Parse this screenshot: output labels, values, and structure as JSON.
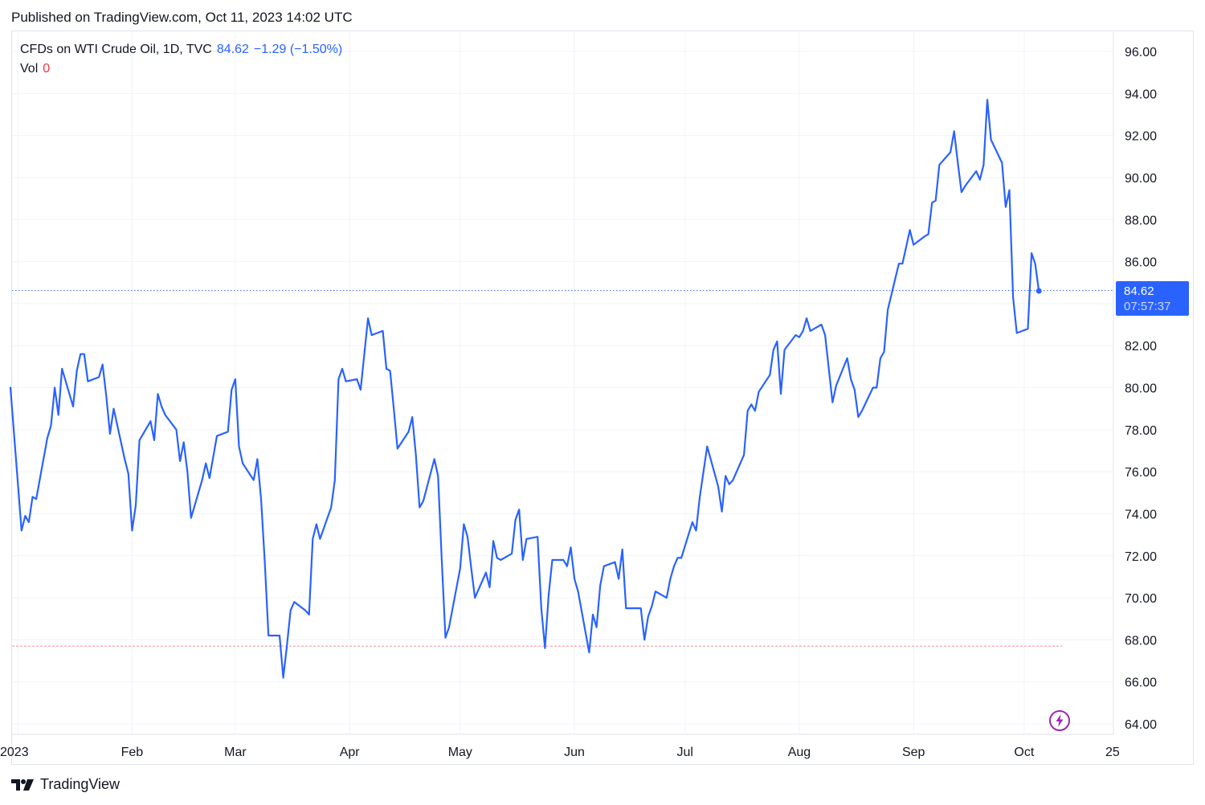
{
  "header": {
    "published": "Published on TradingView.com, Oct 11, 2023 14:02 UTC"
  },
  "legend": {
    "symbol": "CFDs on WTI Crude Oil, 1D, TVC",
    "last": "84.62",
    "change": "−1.29 (−1.50%)",
    "vol_label": "Vol",
    "vol_value": "0"
  },
  "price_badge": {
    "price": "84.62",
    "countdown": "07:57:37"
  },
  "footer": {
    "brand": "TradingView"
  },
  "colors": {
    "series": "#2962ff",
    "grid": "#f0f3fa",
    "axis_text": "#131722",
    "last_line": "#2962ff",
    "low_line": "#f7a6a6",
    "volume": "#f23645"
  },
  "icons": {
    "flash": "lightning-bolt-icon",
    "logo": "tradingview-logo-icon"
  },
  "chart_data": {
    "type": "line",
    "title": "CFDs on WTI Crude Oil, 1D, TVC",
    "xlabel": "",
    "ylabel": "",
    "ylim": [
      63.0,
      97.0
    ],
    "x_start": "2022-12-30",
    "x_end": "2023-10-25",
    "y_ticks": [
      "96.00",
      "94.00",
      "92.00",
      "90.00",
      "88.00",
      "86.00",
      "84.00",
      "82.00",
      "80.00",
      "78.00",
      "76.00",
      "74.00",
      "72.00",
      "70.00",
      "68.00",
      "66.00",
      "64.00"
    ],
    "x_ticks": [
      {
        "label": "2023",
        "date": "2023-01-01"
      },
      {
        "label": "Feb",
        "date": "2023-02-01"
      },
      {
        "label": "Mar",
        "date": "2023-03-01"
      },
      {
        "label": "Apr",
        "date": "2023-04-01"
      },
      {
        "label": "May",
        "date": "2023-05-01"
      },
      {
        "label": "Jun",
        "date": "2023-06-01"
      },
      {
        "label": "Jul",
        "date": "2023-07-01"
      },
      {
        "label": "Aug",
        "date": "2023-08-01"
      },
      {
        "label": "Sep",
        "date": "2023-09-01"
      },
      {
        "label": "Oct",
        "date": "2023-10-01"
      },
      {
        "label": "25",
        "date": "2023-10-25"
      }
    ],
    "last_price": 84.62,
    "reference_low": 67.7,
    "grid": true,
    "series": [
      {
        "name": "CFDs on WTI Crude Oil",
        "points": [
          [
            "2022-12-30",
            80.0
          ],
          [
            "2023-01-02",
            73.2
          ],
          [
            "2023-01-03",
            73.9
          ],
          [
            "2023-01-04",
            73.6
          ],
          [
            "2023-01-05",
            74.8
          ],
          [
            "2023-01-06",
            74.7
          ],
          [
            "2023-01-09",
            77.6
          ],
          [
            "2023-01-10",
            78.2
          ],
          [
            "2023-01-11",
            80.0
          ],
          [
            "2023-01-12",
            78.7
          ],
          [
            "2023-01-13",
            80.9
          ],
          [
            "2023-01-16",
            79.1
          ],
          [
            "2023-01-17",
            80.8
          ],
          [
            "2023-01-18",
            81.6
          ],
          [
            "2023-01-19",
            81.6
          ],
          [
            "2023-01-20",
            80.3
          ],
          [
            "2023-01-23",
            80.5
          ],
          [
            "2023-01-24",
            81.1
          ],
          [
            "2023-01-25",
            79.6
          ],
          [
            "2023-01-26",
            77.8
          ],
          [
            "2023-01-27",
            79.0
          ],
          [
            "2023-01-30",
            76.6
          ],
          [
            "2023-01-31",
            75.9
          ],
          [
            "2023-02-01",
            73.2
          ],
          [
            "2023-02-02",
            74.4
          ],
          [
            "2023-02-03",
            77.5
          ],
          [
            "2023-02-06",
            78.4
          ],
          [
            "2023-02-07",
            77.5
          ],
          [
            "2023-02-08",
            79.7
          ],
          [
            "2023-02-09",
            79.1
          ],
          [
            "2023-02-10",
            78.7
          ],
          [
            "2023-02-13",
            78.0
          ],
          [
            "2023-02-14",
            76.5
          ],
          [
            "2023-02-15",
            77.4
          ],
          [
            "2023-02-16",
            76.0
          ],
          [
            "2023-02-17",
            73.8
          ],
          [
            "2023-02-20",
            75.6
          ],
          [
            "2023-02-21",
            76.4
          ],
          [
            "2023-02-22",
            75.7
          ],
          [
            "2023-02-23",
            76.7
          ],
          [
            "2023-02-24",
            77.7
          ],
          [
            "2023-02-27",
            77.9
          ],
          [
            "2023-02-28",
            79.9
          ],
          [
            "2023-03-01",
            80.4
          ],
          [
            "2023-03-02",
            77.2
          ],
          [
            "2023-03-03",
            76.4
          ],
          [
            "2023-03-06",
            75.6
          ],
          [
            "2023-03-07",
            76.6
          ],
          [
            "2023-03-08",
            74.7
          ],
          [
            "2023-03-09",
            71.7
          ],
          [
            "2023-03-10",
            68.2
          ],
          [
            "2023-03-13",
            68.2
          ],
          [
            "2023-03-14",
            66.2
          ],
          [
            "2023-03-15",
            67.7
          ],
          [
            "2023-03-16",
            69.4
          ],
          [
            "2023-03-17",
            69.8
          ],
          [
            "2023-03-20",
            69.4
          ],
          [
            "2023-03-21",
            69.2
          ],
          [
            "2023-03-22",
            72.8
          ],
          [
            "2023-03-23",
            73.5
          ],
          [
            "2023-03-24",
            72.8
          ],
          [
            "2023-03-27",
            74.3
          ],
          [
            "2023-03-28",
            75.6
          ],
          [
            "2023-03-29",
            80.4
          ],
          [
            "2023-03-30",
            80.9
          ],
          [
            "2023-03-31",
            80.3
          ],
          [
            "2023-04-03",
            80.4
          ],
          [
            "2023-04-04",
            79.9
          ],
          [
            "2023-04-05",
            81.6
          ],
          [
            "2023-04-06",
            83.3
          ],
          [
            "2023-04-07",
            82.5
          ],
          [
            "2023-04-10",
            82.7
          ],
          [
            "2023-04-11",
            80.9
          ],
          [
            "2023-04-12",
            80.8
          ],
          [
            "2023-04-13",
            79.0
          ],
          [
            "2023-04-14",
            77.1
          ],
          [
            "2023-04-17",
            77.9
          ],
          [
            "2023-04-18",
            78.6
          ],
          [
            "2023-04-19",
            76.8
          ],
          [
            "2023-04-20",
            74.3
          ],
          [
            "2023-04-21",
            74.6
          ],
          [
            "2023-04-24",
            76.6
          ],
          [
            "2023-04-25",
            75.8
          ],
          [
            "2023-04-26",
            71.8
          ],
          [
            "2023-04-27",
            68.1
          ],
          [
            "2023-04-28",
            68.6
          ],
          [
            "2023-05-01",
            71.4
          ],
          [
            "2023-05-02",
            73.5
          ],
          [
            "2023-05-03",
            72.9
          ],
          [
            "2023-05-04",
            71.4
          ],
          [
            "2023-05-05",
            70.0
          ],
          [
            "2023-05-08",
            71.2
          ],
          [
            "2023-05-09",
            70.5
          ],
          [
            "2023-05-10",
            72.7
          ],
          [
            "2023-05-11",
            71.9
          ],
          [
            "2023-05-12",
            71.8
          ],
          [
            "2023-05-15",
            72.1
          ],
          [
            "2023-05-16",
            73.7
          ],
          [
            "2023-05-17",
            74.2
          ],
          [
            "2023-05-18",
            71.8
          ],
          [
            "2023-05-19",
            72.8
          ],
          [
            "2023-05-22",
            72.9
          ],
          [
            "2023-05-23",
            69.5
          ],
          [
            "2023-05-24",
            67.6
          ],
          [
            "2023-05-25",
            70.1
          ],
          [
            "2023-05-26",
            71.8
          ],
          [
            "2023-05-29",
            71.8
          ],
          [
            "2023-05-30",
            71.5
          ],
          [
            "2023-05-31",
            72.4
          ],
          [
            "2023-06-01",
            70.9
          ],
          [
            "2023-06-02",
            70.3
          ],
          [
            "2023-06-05",
            67.4
          ],
          [
            "2023-06-06",
            69.2
          ],
          [
            "2023-06-07",
            68.6
          ],
          [
            "2023-06-08",
            70.6
          ],
          [
            "2023-06-09",
            71.5
          ],
          [
            "2023-06-12",
            71.7
          ],
          [
            "2023-06-13",
            70.9
          ],
          [
            "2023-06-14",
            72.3
          ],
          [
            "2023-06-15",
            69.5
          ],
          [
            "2023-06-16",
            69.5
          ],
          [
            "2023-06-19",
            69.5
          ],
          [
            "2023-06-20",
            68.0
          ],
          [
            "2023-06-21",
            69.1
          ],
          [
            "2023-06-22",
            69.6
          ],
          [
            "2023-06-23",
            70.3
          ],
          [
            "2023-06-26",
            70.0
          ],
          [
            "2023-06-27",
            70.9
          ],
          [
            "2023-06-28",
            71.5
          ],
          [
            "2023-06-29",
            71.9
          ],
          [
            "2023-06-30",
            71.9
          ],
          [
            "2023-07-03",
            73.6
          ],
          [
            "2023-07-04",
            73.2
          ],
          [
            "2023-07-05",
            74.8
          ],
          [
            "2023-07-06",
            76.0
          ],
          [
            "2023-07-07",
            77.2
          ],
          [
            "2023-07-10",
            75.3
          ],
          [
            "2023-07-11",
            74.1
          ],
          [
            "2023-07-12",
            75.8
          ],
          [
            "2023-07-13",
            75.4
          ],
          [
            "2023-07-14",
            75.6
          ],
          [
            "2023-07-17",
            76.8
          ],
          [
            "2023-07-18",
            78.9
          ],
          [
            "2023-07-19",
            79.2
          ],
          [
            "2023-07-20",
            78.9
          ],
          [
            "2023-07-21",
            79.8
          ],
          [
            "2023-07-24",
            80.6
          ],
          [
            "2023-07-25",
            81.8
          ],
          [
            "2023-07-26",
            82.2
          ],
          [
            "2023-07-27",
            79.7
          ],
          [
            "2023-07-28",
            81.8
          ],
          [
            "2023-07-31",
            82.5
          ],
          [
            "2023-08-01",
            82.4
          ],
          [
            "2023-08-02",
            82.7
          ],
          [
            "2023-08-03",
            83.3
          ],
          [
            "2023-08-04",
            82.7
          ],
          [
            "2023-08-07",
            83.0
          ],
          [
            "2023-08-08",
            82.5
          ],
          [
            "2023-08-09",
            80.9
          ],
          [
            "2023-08-10",
            79.3
          ],
          [
            "2023-08-11",
            80.1
          ],
          [
            "2023-08-14",
            81.4
          ],
          [
            "2023-08-15",
            80.4
          ],
          [
            "2023-08-16",
            79.9
          ],
          [
            "2023-08-17",
            78.6
          ],
          [
            "2023-08-18",
            78.9
          ],
          [
            "2023-08-21",
            80.0
          ],
          [
            "2023-08-22",
            80.0
          ],
          [
            "2023-08-23",
            81.4
          ],
          [
            "2023-08-24",
            81.7
          ],
          [
            "2023-08-25",
            83.7
          ],
          [
            "2023-08-28",
            85.9
          ],
          [
            "2023-08-29",
            85.9
          ],
          [
            "2023-08-30",
            86.7
          ],
          [
            "2023-08-31",
            87.5
          ],
          [
            "2023-09-01",
            86.8
          ],
          [
            "2023-09-04",
            87.2
          ],
          [
            "2023-09-05",
            87.3
          ],
          [
            "2023-09-06",
            88.8
          ],
          [
            "2023-09-07",
            88.9
          ],
          [
            "2023-09-08",
            90.6
          ],
          [
            "2023-09-11",
            91.2
          ],
          [
            "2023-09-12",
            92.2
          ],
          [
            "2023-09-13",
            90.7
          ],
          [
            "2023-09-14",
            89.3
          ],
          [
            "2023-09-15",
            89.6
          ],
          [
            "2023-09-18",
            90.3
          ],
          [
            "2023-09-19",
            89.9
          ],
          [
            "2023-09-20",
            90.6
          ],
          [
            "2023-09-21",
            93.7
          ],
          [
            "2023-09-22",
            91.8
          ],
          [
            "2023-09-25",
            90.7
          ],
          [
            "2023-09-26",
            88.6
          ],
          [
            "2023-09-27",
            89.4
          ],
          [
            "2023-09-28",
            84.3
          ],
          [
            "2023-09-29",
            82.6
          ],
          [
            "2023-10-02",
            82.8
          ],
          [
            "2023-10-03",
            86.4
          ],
          [
            "2023-10-04",
            85.9
          ],
          [
            "2023-10-05",
            84.6
          ]
        ]
      }
    ]
  }
}
